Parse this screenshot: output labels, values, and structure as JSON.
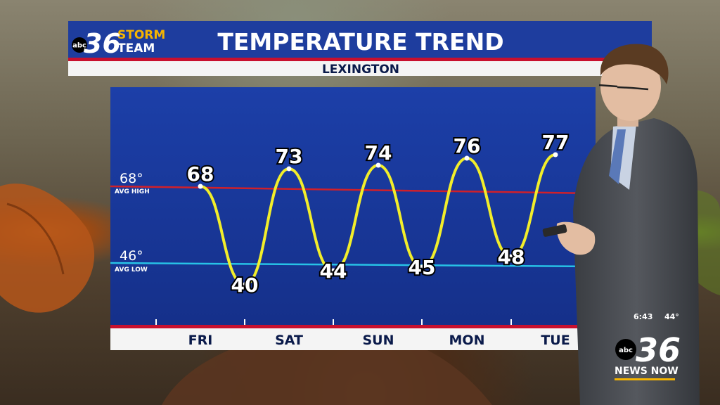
{
  "header": {
    "logo_number": "36",
    "logo_network": "abc",
    "logo_line1": "STORM",
    "logo_line2": "TEAM",
    "title": "TEMPERATURE TREND",
    "location": "LEXINGTON"
  },
  "colors": {
    "header_blue": "#1e3d9e",
    "chart_blue": "#1a3aa0",
    "accent_red": "#c8102e",
    "trend_line": "#f2ee2a",
    "avg_high_line": "#d0202a",
    "avg_low_line": "#27c2e6",
    "logo_gold": "#f5b400"
  },
  "reference_lines": {
    "avg_high": {
      "value_label": "68°",
      "caption": "AVG HIGH",
      "value": 68
    },
    "avg_low": {
      "value_label": "46°",
      "caption": "AVG LOW",
      "value": 46
    }
  },
  "chart_data": {
    "type": "line",
    "title": "TEMPERATURE TREND",
    "subtitle": "LEXINGTON",
    "categories": [
      "FRI",
      "SAT",
      "SUN",
      "MON",
      "TUE"
    ],
    "points": [
      {
        "day": "FRI",
        "kind": "high",
        "value": 68
      },
      {
        "day": "SAT",
        "kind": "low",
        "value": 40
      },
      {
        "day": "SAT",
        "kind": "high",
        "value": 73
      },
      {
        "day": "SUN",
        "kind": "low",
        "value": 44
      },
      {
        "day": "SUN",
        "kind": "high",
        "value": 74
      },
      {
        "day": "MON",
        "kind": "low",
        "value": 45
      },
      {
        "day": "MON",
        "kind": "high",
        "value": 76
      },
      {
        "day": "TUE",
        "kind": "low",
        "value": 48
      },
      {
        "day": "TUE",
        "kind": "high",
        "value": 77
      }
    ],
    "point_labels": [
      "68",
      "40",
      "73",
      "44",
      "74",
      "45",
      "76",
      "48",
      "77"
    ],
    "grid": false,
    "legend": "none"
  },
  "station_bug": {
    "time": "6:43",
    "temperature": "44°",
    "network": "abc",
    "channel": "36",
    "brand": "NEWS NOW"
  }
}
